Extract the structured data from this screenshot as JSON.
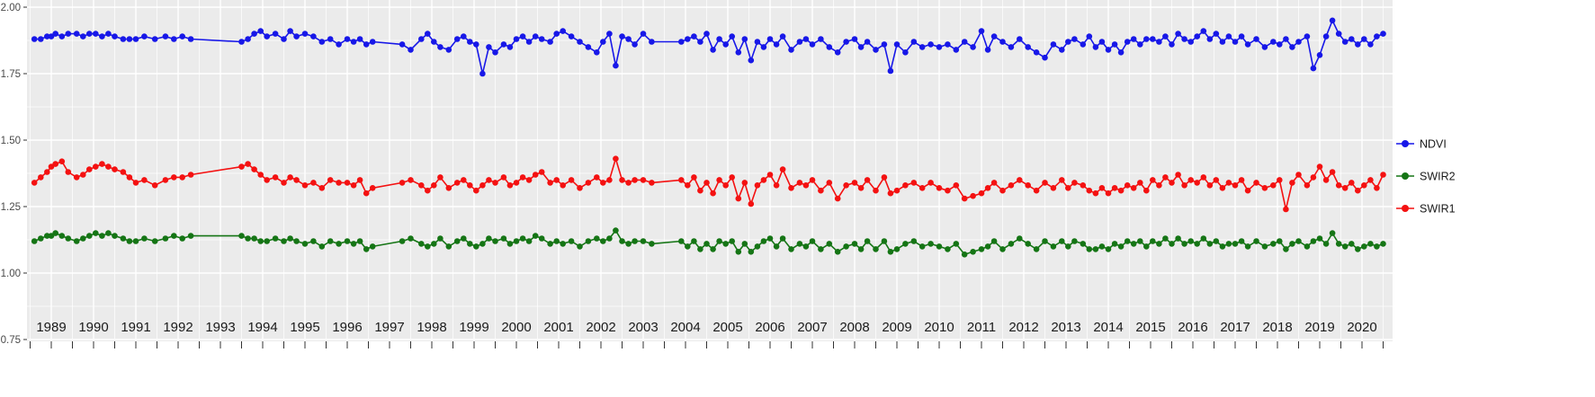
{
  "colors": {
    "page_bg": "#FFFFFF",
    "panel_bg": "#EBEBEB",
    "grid_major": "#FFFFFF",
    "grid_minor": "#FFFFFF",
    "axis_tick": "#333333",
    "y_label_text": "#4A4A4A",
    "x_label_text": "#1A1A1A",
    "legend_text": "#1A1A1A"
  },
  "chart_data": {
    "type": "line",
    "markers": true,
    "title": "",
    "xlabel": "",
    "ylabel": "",
    "grid": true,
    "legend_position": "right",
    "xlim": [
      1988.4,
      2020.7
    ],
    "ylim": [
      0.75,
      2.0
    ],
    "y_ticks": [
      2.0,
      1.75,
      1.5,
      1.25,
      1.0,
      0.75
    ],
    "y_tick_labels": [
      "2.00",
      "1.75",
      "1.50",
      "1.25",
      "1.00",
      "0.75"
    ],
    "x_tick_labels": [
      "1989",
      "1990",
      "1991",
      "1992",
      "1993",
      "1994",
      "1995",
      "1996",
      "1997",
      "1998",
      "1999",
      "2000",
      "2001",
      "2002",
      "2003",
      "2004",
      "2005",
      "2006",
      "2007",
      "2008",
      "2009",
      "2010",
      "2011",
      "2012",
      "2013",
      "2014",
      "2015",
      "2016",
      "2017",
      "2018",
      "2019",
      "2020"
    ],
    "x": [
      1988.6,
      1988.75,
      1988.9,
      1989.0,
      1989.1,
      1989.25,
      1989.4,
      1989.6,
      1989.75,
      1989.9,
      1990.05,
      1990.2,
      1990.35,
      1990.5,
      1990.7,
      1990.85,
      1991.0,
      1991.2,
      1991.45,
      1991.7,
      1991.9,
      1992.1,
      1992.3,
      1993.5,
      1993.65,
      1993.8,
      1993.95,
      1994.1,
      1994.3,
      1994.5,
      1994.65,
      1994.8,
      1995.0,
      1995.2,
      1995.4,
      1995.6,
      1995.8,
      1996.0,
      1996.15,
      1996.3,
      1996.45,
      1996.6,
      1997.3,
      1997.5,
      1997.75,
      1997.9,
      1998.05,
      1998.2,
      1998.4,
      1998.6,
      1998.75,
      1998.9,
      1999.05,
      1999.2,
      1999.35,
      1999.5,
      1999.7,
      1999.85,
      2000.0,
      2000.15,
      2000.3,
      2000.45,
      2000.6,
      2000.8,
      2000.95,
      2001.1,
      2001.3,
      2001.5,
      2001.7,
      2001.9,
      2002.05,
      2002.2,
      2002.35,
      2002.5,
      2002.65,
      2002.8,
      2003.0,
      2003.2,
      2003.9,
      2004.05,
      2004.2,
      2004.35,
      2004.5,
      2004.65,
      2004.8,
      2004.95,
      2005.1,
      2005.25,
      2005.4,
      2005.55,
      2005.7,
      2005.85,
      2006.0,
      2006.15,
      2006.3,
      2006.5,
      2006.7,
      2006.85,
      2007.0,
      2007.2,
      2007.4,
      2007.6,
      2007.8,
      2008.0,
      2008.15,
      2008.3,
      2008.5,
      2008.7,
      2008.85,
      2009.0,
      2009.2,
      2009.4,
      2009.6,
      2009.8,
      2010.0,
      2010.2,
      2010.4,
      2010.6,
      2010.8,
      2011.0,
      2011.15,
      2011.3,
      2011.5,
      2011.7,
      2011.9,
      2012.1,
      2012.3,
      2012.5,
      2012.7,
      2012.9,
      2013.05,
      2013.2,
      2013.4,
      2013.55,
      2013.7,
      2013.85,
      2014.0,
      2014.15,
      2014.3,
      2014.45,
      2014.6,
      2014.75,
      2014.9,
      2015.05,
      2015.2,
      2015.35,
      2015.5,
      2015.65,
      2015.8,
      2015.95,
      2016.1,
      2016.25,
      2016.4,
      2016.55,
      2016.7,
      2016.85,
      2017.0,
      2017.15,
      2017.3,
      2017.5,
      2017.7,
      2017.9,
      2018.05,
      2018.2,
      2018.35,
      2018.5,
      2018.7,
      2018.85,
      2019.0,
      2019.15,
      2019.3,
      2019.45,
      2019.6,
      2019.75,
      2019.9,
      2020.05,
      2020.2,
      2020.35,
      2020.5
    ],
    "series": [
      {
        "name": "NDVI",
        "color": "#1717E8",
        "values": [
          1.88,
          1.88,
          1.89,
          1.89,
          1.9,
          1.89,
          1.9,
          1.9,
          1.89,
          1.9,
          1.9,
          1.89,
          1.9,
          1.89,
          1.88,
          1.88,
          1.88,
          1.89,
          1.88,
          1.89,
          1.88,
          1.89,
          1.88,
          1.87,
          1.88,
          1.9,
          1.91,
          1.89,
          1.9,
          1.88,
          1.91,
          1.89,
          1.9,
          1.89,
          1.87,
          1.88,
          1.86,
          1.88,
          1.87,
          1.88,
          1.86,
          1.87,
          1.86,
          1.84,
          1.88,
          1.9,
          1.87,
          1.85,
          1.84,
          1.88,
          1.89,
          1.87,
          1.86,
          1.75,
          1.85,
          1.83,
          1.86,
          1.85,
          1.88,
          1.89,
          1.87,
          1.89,
          1.88,
          1.87,
          1.9,
          1.91,
          1.89,
          1.87,
          1.85,
          1.83,
          1.87,
          1.9,
          1.78,
          1.89,
          1.88,
          1.86,
          1.9,
          1.87,
          1.87,
          1.88,
          1.89,
          1.87,
          1.9,
          1.84,
          1.88,
          1.86,
          1.89,
          1.83,
          1.88,
          1.8,
          1.87,
          1.85,
          1.88,
          1.86,
          1.89,
          1.84,
          1.87,
          1.88,
          1.86,
          1.88,
          1.85,
          1.83,
          1.87,
          1.88,
          1.85,
          1.87,
          1.84,
          1.86,
          1.76,
          1.86,
          1.83,
          1.87,
          1.85,
          1.86,
          1.85,
          1.86,
          1.84,
          1.87,
          1.85,
          1.91,
          1.84,
          1.89,
          1.87,
          1.85,
          1.88,
          1.85,
          1.83,
          1.81,
          1.86,
          1.84,
          1.87,
          1.88,
          1.86,
          1.89,
          1.85,
          1.87,
          1.84,
          1.86,
          1.83,
          1.87,
          1.88,
          1.86,
          1.88,
          1.88,
          1.87,
          1.89,
          1.86,
          1.9,
          1.88,
          1.87,
          1.89,
          1.91,
          1.88,
          1.9,
          1.87,
          1.89,
          1.87,
          1.89,
          1.86,
          1.88,
          1.85,
          1.87,
          1.86,
          1.88,
          1.85,
          1.87,
          1.89,
          1.77,
          1.82,
          1.89,
          1.95,
          1.9,
          1.87,
          1.88,
          1.86,
          1.88,
          1.86,
          1.89,
          1.9
        ]
      },
      {
        "name": "SWIR2",
        "color": "#157515",
        "values": [
          1.12,
          1.13,
          1.14,
          1.14,
          1.15,
          1.14,
          1.13,
          1.12,
          1.13,
          1.14,
          1.15,
          1.14,
          1.15,
          1.14,
          1.13,
          1.12,
          1.12,
          1.13,
          1.12,
          1.13,
          1.14,
          1.13,
          1.14,
          1.14,
          1.13,
          1.13,
          1.12,
          1.12,
          1.13,
          1.12,
          1.13,
          1.12,
          1.11,
          1.12,
          1.1,
          1.12,
          1.11,
          1.12,
          1.11,
          1.12,
          1.09,
          1.1,
          1.12,
          1.13,
          1.11,
          1.1,
          1.11,
          1.13,
          1.1,
          1.12,
          1.13,
          1.11,
          1.1,
          1.11,
          1.13,
          1.12,
          1.13,
          1.11,
          1.12,
          1.13,
          1.12,
          1.14,
          1.13,
          1.11,
          1.12,
          1.11,
          1.12,
          1.1,
          1.12,
          1.13,
          1.12,
          1.13,
          1.16,
          1.12,
          1.11,
          1.12,
          1.12,
          1.11,
          1.12,
          1.1,
          1.12,
          1.09,
          1.11,
          1.09,
          1.12,
          1.11,
          1.12,
          1.08,
          1.11,
          1.08,
          1.1,
          1.12,
          1.13,
          1.1,
          1.13,
          1.09,
          1.11,
          1.1,
          1.12,
          1.09,
          1.11,
          1.08,
          1.1,
          1.11,
          1.09,
          1.12,
          1.09,
          1.12,
          1.08,
          1.09,
          1.11,
          1.12,
          1.1,
          1.11,
          1.1,
          1.09,
          1.11,
          1.07,
          1.08,
          1.09,
          1.1,
          1.12,
          1.09,
          1.11,
          1.13,
          1.11,
          1.09,
          1.12,
          1.1,
          1.12,
          1.1,
          1.12,
          1.11,
          1.09,
          1.09,
          1.1,
          1.09,
          1.11,
          1.1,
          1.12,
          1.11,
          1.12,
          1.1,
          1.12,
          1.11,
          1.13,
          1.11,
          1.13,
          1.11,
          1.12,
          1.11,
          1.13,
          1.11,
          1.12,
          1.1,
          1.11,
          1.11,
          1.12,
          1.1,
          1.12,
          1.1,
          1.11,
          1.12,
          1.09,
          1.11,
          1.12,
          1.1,
          1.12,
          1.13,
          1.11,
          1.15,
          1.11,
          1.1,
          1.11,
          1.09,
          1.1,
          1.11,
          1.1,
          1.11
        ]
      },
      {
        "name": "SWIR1",
        "color": "#F41111",
        "values": [
          1.34,
          1.36,
          1.38,
          1.4,
          1.41,
          1.42,
          1.38,
          1.36,
          1.37,
          1.39,
          1.4,
          1.41,
          1.4,
          1.39,
          1.38,
          1.36,
          1.34,
          1.35,
          1.33,
          1.35,
          1.36,
          1.36,
          1.37,
          1.4,
          1.41,
          1.39,
          1.37,
          1.35,
          1.36,
          1.34,
          1.36,
          1.35,
          1.33,
          1.34,
          1.32,
          1.35,
          1.34,
          1.34,
          1.33,
          1.35,
          1.3,
          1.32,
          1.34,
          1.35,
          1.33,
          1.31,
          1.33,
          1.36,
          1.32,
          1.34,
          1.35,
          1.33,
          1.31,
          1.33,
          1.35,
          1.34,
          1.36,
          1.33,
          1.34,
          1.36,
          1.35,
          1.37,
          1.38,
          1.34,
          1.35,
          1.33,
          1.35,
          1.32,
          1.34,
          1.36,
          1.34,
          1.35,
          1.43,
          1.35,
          1.34,
          1.35,
          1.35,
          1.34,
          1.35,
          1.33,
          1.36,
          1.31,
          1.34,
          1.3,
          1.35,
          1.33,
          1.36,
          1.28,
          1.34,
          1.26,
          1.33,
          1.35,
          1.37,
          1.33,
          1.39,
          1.32,
          1.34,
          1.33,
          1.35,
          1.31,
          1.34,
          1.28,
          1.33,
          1.34,
          1.32,
          1.35,
          1.31,
          1.36,
          1.3,
          1.31,
          1.33,
          1.34,
          1.32,
          1.34,
          1.32,
          1.31,
          1.33,
          1.28,
          1.29,
          1.3,
          1.32,
          1.34,
          1.31,
          1.33,
          1.35,
          1.33,
          1.31,
          1.34,
          1.32,
          1.35,
          1.32,
          1.34,
          1.33,
          1.31,
          1.3,
          1.32,
          1.3,
          1.32,
          1.31,
          1.33,
          1.32,
          1.34,
          1.31,
          1.35,
          1.33,
          1.36,
          1.34,
          1.37,
          1.33,
          1.35,
          1.34,
          1.36,
          1.33,
          1.35,
          1.32,
          1.34,
          1.33,
          1.35,
          1.31,
          1.34,
          1.32,
          1.33,
          1.35,
          1.24,
          1.34,
          1.37,
          1.33,
          1.36,
          1.4,
          1.35,
          1.38,
          1.33,
          1.32,
          1.34,
          1.31,
          1.33,
          1.35,
          1.32,
          1.37
        ]
      }
    ]
  }
}
